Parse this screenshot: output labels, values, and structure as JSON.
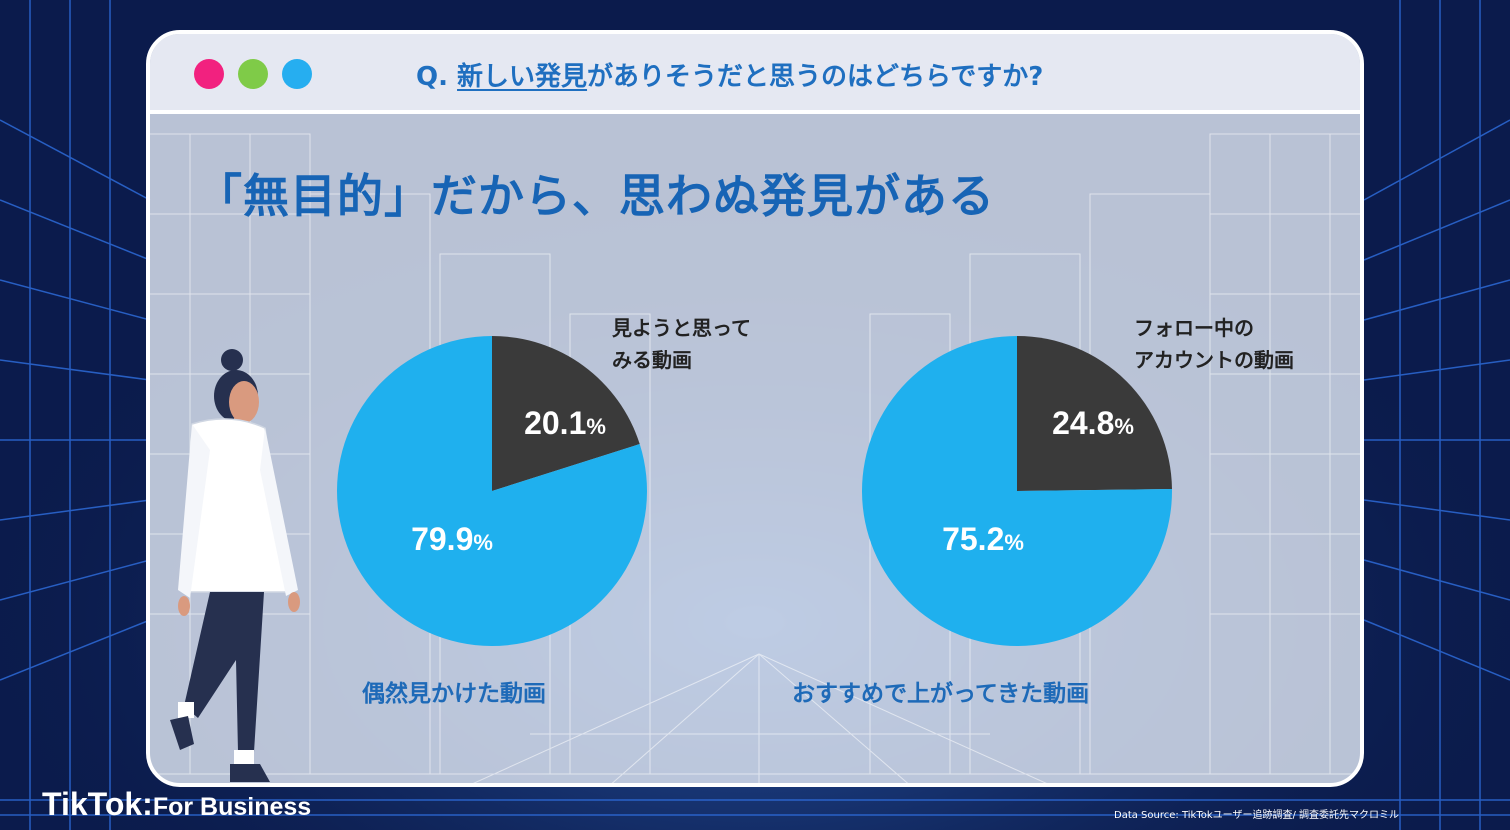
{
  "window": {
    "question_prefix": "Q. ",
    "question_highlight": "新しい発見",
    "question_rest": "がありそうだと思うのはどちらですか?"
  },
  "headline": "「無目的」だから、思わぬ発見がある",
  "colors": {
    "primary": "#1fb0ee",
    "secondary": "#3a3a3a",
    "accent_text": "#1764b5",
    "dot_pink": "#f2217f",
    "dot_green": "#7fcb48",
    "dot_blue": "#26aef0"
  },
  "chart_data": [
    {
      "type": "pie",
      "slices": [
        {
          "label": "見ようと思ってみる動画",
          "value": 20.1,
          "display": "20.1%",
          "color": "#3a3a3a"
        },
        {
          "label": "偶然見かけた動画",
          "value": 79.9,
          "display": "79.9%",
          "color": "#1fb0ee"
        }
      ]
    },
    {
      "type": "pie",
      "slices": [
        {
          "label": "フォロー中のアカウントの動画",
          "value": 24.8,
          "display": "24.8%",
          "color": "#3a3a3a"
        },
        {
          "label": "おすすめで上がってきた動画",
          "value": 75.2,
          "display": "75.2%",
          "color": "#1fb0ee"
        }
      ]
    }
  ],
  "labels": {
    "chart1_top_line1": "見ようと思って",
    "chart1_top_line2": "みる動画",
    "chart1_bottom": "偶然見かけた動画",
    "chart2_top_line1": "フォロー中の",
    "chart2_top_line2": "アカウントの動画",
    "chart2_bottom": "おすすめで上がってきた動画"
  },
  "brand": {
    "name": "TikTok",
    "separator": ":",
    "suffix": "For Business"
  },
  "source": "Data Source: TikTokユーザー追跡調査/ 調査委託先マクロミル"
}
